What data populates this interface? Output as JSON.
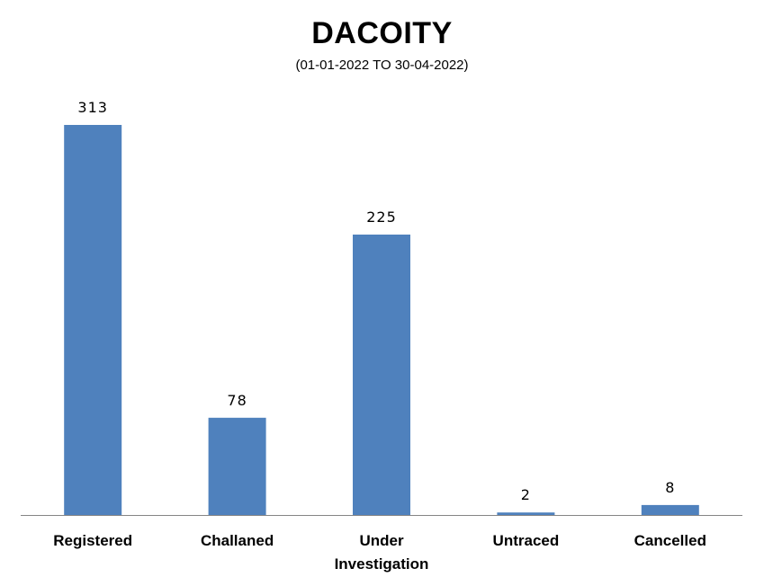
{
  "chart_data": {
    "type": "bar",
    "title": "DACOITY",
    "subtitle": "(01-01-2022 TO 30-04-2022)",
    "categories": [
      [
        "Registered"
      ],
      [
        "Challaned"
      ],
      [
        "Under",
        "Investigation"
      ],
      [
        "Untraced"
      ],
      [
        "Cancelled"
      ]
    ],
    "values": [
      313,
      78,
      225,
      2,
      8
    ],
    "ylim": [
      0,
      313
    ],
    "grid": false,
    "legend": "none",
    "bar_color": "#4F81BD",
    "axis_color": "#868686"
  }
}
